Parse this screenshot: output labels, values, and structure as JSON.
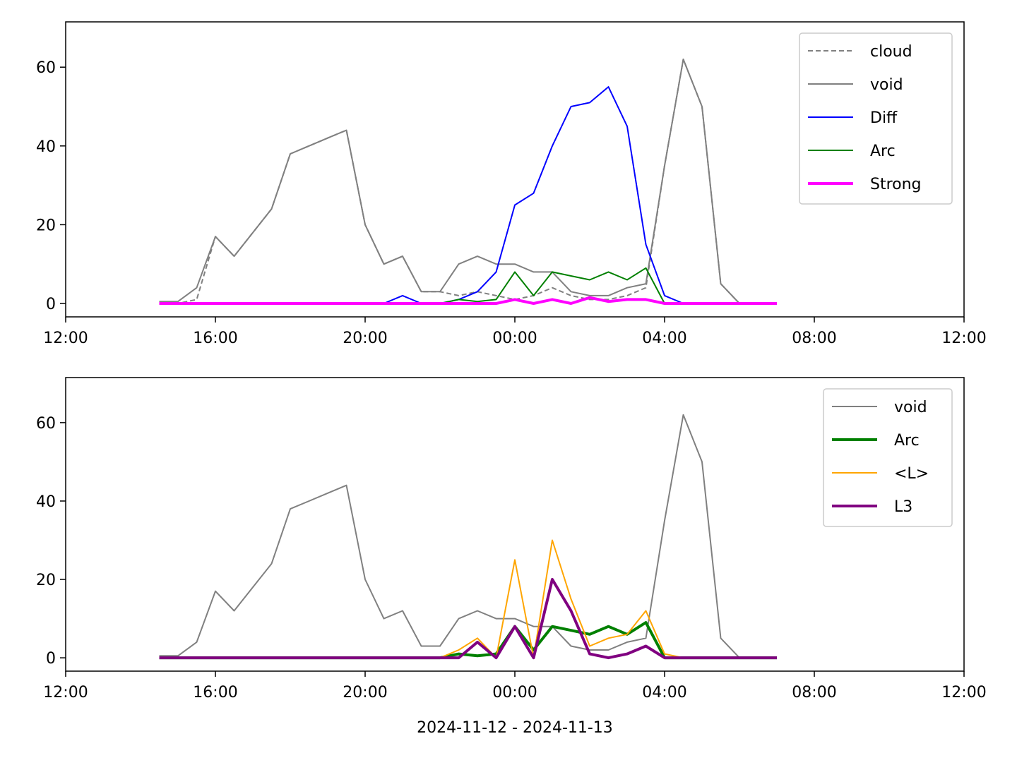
{
  "chart_data": [
    {
      "type": "line",
      "x": [
        14.5,
        15,
        15.5,
        16,
        16.5,
        17,
        17.5,
        18,
        18.5,
        19,
        19.5,
        20,
        20.5,
        21,
        21.5,
        22,
        22.5,
        23,
        23.5,
        24,
        24.5,
        25,
        25.5,
        26,
        26.5,
        27,
        27.5,
        28,
        28.5,
        29,
        29.5,
        30,
        30.5,
        31
      ],
      "xlim": [
        12,
        36
      ],
      "xticks": [
        {
          "value": 12,
          "label": "12:00"
        },
        {
          "value": 16,
          "label": "16:00"
        },
        {
          "value": 20,
          "label": "20:00"
        },
        {
          "value": 24,
          "label": "00:00"
        },
        {
          "value": 28,
          "label": "04:00"
        },
        {
          "value": 32,
          "label": "08:00"
        },
        {
          "value": 36,
          "label": "12:00"
        }
      ],
      "ylim": [
        -3.4,
        71.5
      ],
      "yticks": [
        0,
        20,
        40,
        60
      ],
      "legend": "upper right",
      "series": [
        {
          "name": "cloud",
          "color": "#808080",
          "linestyle": "dashed",
          "linewidth": 2,
          "values": [
            0,
            0,
            1,
            17,
            12,
            18,
            24,
            38,
            40,
            42,
            44,
            20,
            10,
            12,
            3,
            3,
            2,
            3,
            2,
            1,
            2,
            4,
            2,
            1,
            1,
            2,
            4,
            35,
            62,
            50,
            5,
            0,
            0,
            0
          ]
        },
        {
          "name": "void",
          "color": "#808080",
          "linestyle": "solid",
          "linewidth": 2,
          "values": [
            0.5,
            0.5,
            4,
            17,
            12,
            18,
            24,
            38,
            40,
            42,
            44,
            20,
            10,
            12,
            3,
            3,
            10,
            12,
            10,
            10,
            8,
            8,
            3,
            2,
            2,
            4,
            5,
            35,
            62,
            50,
            5,
            0,
            0,
            0
          ]
        },
        {
          "name": "Diff",
          "color": "#0000ff",
          "linestyle": "solid",
          "linewidth": 2,
          "values": [
            0,
            0,
            0,
            0,
            0,
            0,
            0,
            0,
            0,
            0,
            0,
            0,
            0,
            2,
            0,
            0,
            1,
            3,
            8,
            25,
            28,
            40,
            50,
            51,
            55,
            45,
            15,
            2,
            0,
            0,
            0,
            0,
            0,
            0
          ]
        },
        {
          "name": "Arc",
          "color": "#008000",
          "linestyle": "solid",
          "linewidth": 2,
          "values": [
            0,
            0,
            0,
            0,
            0,
            0,
            0,
            0,
            0,
            0,
            0,
            0,
            0,
            0,
            0,
            0,
            1,
            0.5,
            1,
            8,
            2,
            8,
            7,
            6,
            8,
            6,
            9,
            0,
            0,
            0,
            0,
            0,
            0,
            0
          ]
        },
        {
          "name": "Strong",
          "color": "#ff00ff",
          "linestyle": "solid",
          "linewidth": 4,
          "values": [
            0,
            0,
            0,
            0,
            0,
            0,
            0,
            0,
            0,
            0,
            0,
            0,
            0,
            0,
            0,
            0,
            0,
            0,
            0,
            1,
            0,
            1,
            0,
            1.5,
            0.5,
            1,
            1,
            0,
            0,
            0,
            0,
            0,
            0,
            0
          ]
        }
      ]
    },
    {
      "type": "line",
      "x": [
        14.5,
        15,
        15.5,
        16,
        16.5,
        17,
        17.5,
        18,
        18.5,
        19,
        19.5,
        20,
        20.5,
        21,
        21.5,
        22,
        22.5,
        23,
        23.5,
        24,
        24.5,
        25,
        25.5,
        26,
        26.5,
        27,
        27.5,
        28,
        28.5,
        29,
        29.5,
        30,
        30.5,
        31
      ],
      "xlim": [
        12,
        36
      ],
      "xticks": [
        {
          "value": 12,
          "label": "12:00"
        },
        {
          "value": 16,
          "label": "16:00"
        },
        {
          "value": 20,
          "label": "20:00"
        },
        {
          "value": 24,
          "label": "00:00"
        },
        {
          "value": 28,
          "label": "04:00"
        },
        {
          "value": 32,
          "label": "08:00"
        },
        {
          "value": 36,
          "label": "12:00"
        }
      ],
      "ylim": [
        -3.4,
        71.5
      ],
      "yticks": [
        0,
        20,
        40,
        60
      ],
      "xlabel": "2024-11-12 - 2024-11-13",
      "legend": "upper right",
      "series": [
        {
          "name": "void",
          "color": "#808080",
          "linestyle": "solid",
          "linewidth": 2,
          "values": [
            0.5,
            0.5,
            4,
            17,
            12,
            18,
            24,
            38,
            40,
            42,
            44,
            20,
            10,
            12,
            3,
            3,
            10,
            12,
            10,
            10,
            8,
            8,
            3,
            2,
            2,
            4,
            5,
            35,
            62,
            50,
            5,
            0,
            0,
            0
          ]
        },
        {
          "name": "Arc",
          "color": "#008000",
          "linestyle": "solid",
          "linewidth": 4,
          "values": [
            0,
            0,
            0,
            0,
            0,
            0,
            0,
            0,
            0,
            0,
            0,
            0,
            0,
            0,
            0,
            0,
            1,
            0.5,
            1,
            8,
            2,
            8,
            7,
            6,
            8,
            6,
            9,
            0,
            0,
            0,
            0,
            0,
            0,
            0
          ]
        },
        {
          "name": "<L>",
          "color": "#ffa500",
          "linestyle": "solid",
          "linewidth": 2,
          "values": [
            0,
            0,
            0,
            0,
            0,
            0,
            0,
            0,
            0,
            0,
            0,
            0,
            0,
            0,
            0,
            0,
            2,
            5,
            0,
            25,
            0,
            30,
            15,
            3,
            5,
            6,
            12,
            1,
            0,
            0,
            0,
            0,
            0,
            0
          ]
        },
        {
          "name": "L3",
          "color": "#800080",
          "linestyle": "solid",
          "linewidth": 4,
          "values": [
            0,
            0,
            0,
            0,
            0,
            0,
            0,
            0,
            0,
            0,
            0,
            0,
            0,
            0,
            0,
            0,
            0,
            4,
            0,
            8,
            0,
            20,
            12,
            1,
            0,
            1,
            3,
            0,
            0,
            0,
            0,
            0,
            0,
            0
          ]
        }
      ]
    }
  ]
}
